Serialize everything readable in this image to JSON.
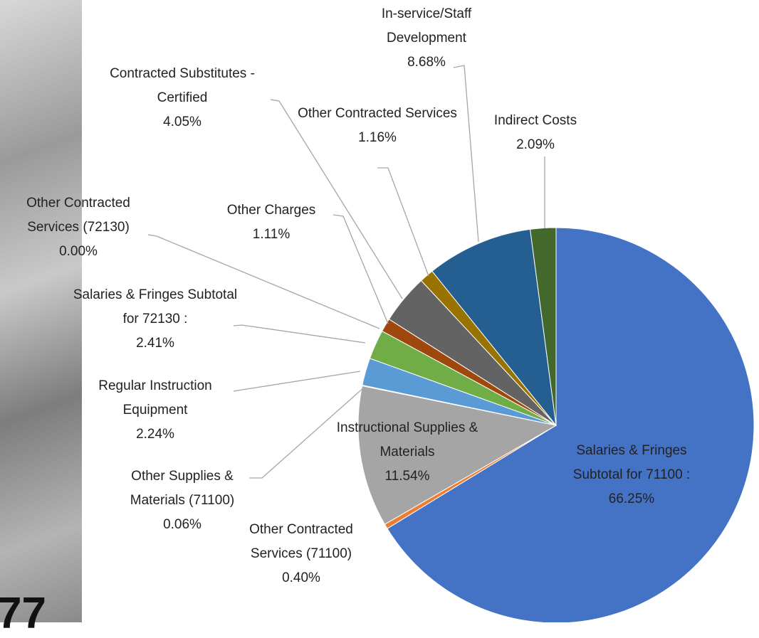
{
  "page_number": "77",
  "chart_data": {
    "type": "pie",
    "categories": [
      "Salaries & Fringes Subtotal for 71100 :",
      "Other Contracted Services (71100)",
      "Instructional Supplies & Materials",
      "Other Supplies & Materials (71100)",
      "Regular Instruction Equipment",
      "Salaries & Fringes Subtotal for 72130 :",
      "Other Contracted Services (72130)",
      "Other Charges",
      "Contracted Substitutes - Certified",
      "Other Contracted Services",
      "In-service/Staff Development",
      "Indirect Costs"
    ],
    "values": [
      66.25,
      0.4,
      11.54,
      0.06,
      2.24,
      2.41,
      0.0,
      1.11,
      4.05,
      1.16,
      8.68,
      2.09
    ],
    "value_labels": [
      "66.25%",
      "0.40%",
      "11.54%",
      "0.06%",
      "2.24%",
      "2.41%",
      "0.00%",
      "1.11%",
      "4.05%",
      "1.16%",
      "8.68%",
      "2.09%"
    ],
    "colors": [
      "#4472c4",
      "#ed7d31",
      "#a5a5a5",
      "#ffc000",
      "#5b9bd5",
      "#70ad47",
      "#264478",
      "#9e480e",
      "#636363",
      "#997300",
      "#255e91",
      "#43682b"
    ]
  }
}
